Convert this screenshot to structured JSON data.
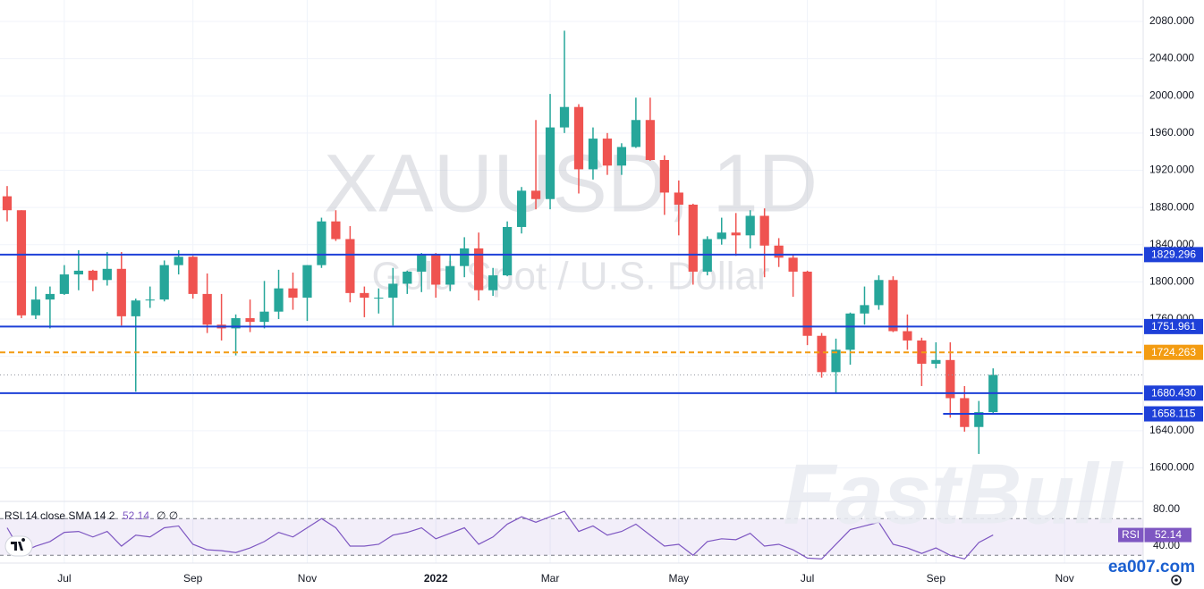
{
  "chart_data": [
    {
      "type": "candlestick",
      "title": "XAUUSD, 1D",
      "subtitle": "Gold Spot / U.S. Dollar",
      "categories": [
        null,
        null,
        null,
        null,
        "Jul",
        null,
        null,
        null,
        null,
        null,
        null,
        null,
        null,
        "Sep",
        null,
        null,
        null,
        null,
        null,
        null,
        null,
        "Nov",
        null,
        null,
        null,
        null,
        null,
        null,
        null,
        null,
        "2022",
        null,
        null,
        null,
        null,
        null,
        null,
        null,
        "Mar",
        null,
        null,
        null,
        null,
        null,
        null,
        null,
        null,
        "May",
        null,
        null,
        null,
        null,
        null,
        null,
        null,
        null,
        "Jul",
        null,
        null,
        null,
        null,
        null,
        null,
        null,
        null,
        "Sep",
        null,
        null,
        null,
        null,
        null,
        null,
        null,
        null,
        "Nov",
        null,
        null,
        null,
        null,
        null
      ],
      "open": [
        1892,
        1877,
        1764,
        1781,
        1787,
        1808,
        1812,
        1802,
        1814,
        1763,
        1780,
        1781,
        1818,
        1827,
        1787,
        1754,
        1750,
        1761,
        1757,
        1768,
        1793,
        1783,
        1818,
        1865,
        1846,
        1788,
        1783,
        1783,
        1798,
        1811,
        1829,
        1797,
        1817,
        1836,
        1791,
        1807,
        1859,
        1898,
        1889,
        1966,
        1988,
        1921,
        1954,
        1925,
        1945,
        1974,
        1931,
        1896,
        1883,
        1811,
        1846,
        1853,
        1850,
        1871,
        1839,
        1826,
        1811,
        1742,
        1703,
        1727,
        1766,
        1775,
        1802,
        1747,
        1737,
        1712,
        1716,
        1675,
        1644,
        1660,
        null,
        null,
        null,
        null,
        null,
        null,
        null,
        null,
        null,
        null
      ],
      "high": [
        1903,
        1877,
        1795,
        1795,
        1818,
        1834,
        1813,
        1832,
        1832,
        1782,
        1795,
        1823,
        1834,
        1828,
        1809,
        1787,
        1765,
        1781,
        1801,
        1813,
        1810,
        1818,
        1869,
        1877,
        1860,
        1795,
        1793,
        1815,
        1812,
        1831,
        1831,
        1829,
        1848,
        1853,
        1815,
        1865,
        1902,
        1974,
        2002,
        2070,
        1991,
        1966,
        1960,
        1949,
        1998,
        1998,
        1936,
        1909,
        1884,
        1849,
        1869,
        1874,
        1877,
        1879,
        1847,
        1830,
        1812,
        1745,
        1739,
        1767,
        1795,
        1807,
        1806,
        1765,
        1740,
        1735,
        1735,
        1688,
        1672,
        1707,
        null,
        null,
        null,
        null,
        null,
        null,
        null,
        null,
        null,
        null
      ],
      "low": [
        1865,
        1761,
        1760,
        1750,
        1786,
        1791,
        1790,
        1796,
        1753,
        1682,
        1772,
        1779,
        1808,
        1782,
        1745,
        1737,
        1721,
        1746,
        1750,
        1760,
        1770,
        1758,
        1815,
        1844,
        1778,
        1762,
        1766,
        1753,
        1787,
        1789,
        1783,
        1790,
        1805,
        1780,
        1785,
        1806,
        1852,
        1878,
        1878,
        1960,
        1895,
        1910,
        1915,
        1915,
        1944,
        1930,
        1872,
        1850,
        1797,
        1807,
        1840,
        1828,
        1836,
        1805,
        1816,
        1784,
        1732,
        1697,
        1681,
        1711,
        1754,
        1770,
        1746,
        1727,
        1688,
        1707,
        1654,
        1639,
        1615,
        1659,
        null,
        null,
        null,
        null,
        null,
        null,
        null,
        null,
        null,
        null
      ],
      "close": [
        1877,
        1764,
        1781,
        1787,
        1808,
        1812,
        1802,
        1814,
        1763,
        1780,
        1781,
        1818,
        1827,
        1787,
        1754,
        1750,
        1761,
        1757,
        1768,
        1793,
        1783,
        1818,
        1865,
        1846,
        1788,
        1783,
        1783,
        1798,
        1811,
        1829,
        1797,
        1817,
        1836,
        1791,
        1807,
        1859,
        1898,
        1889,
        1966,
        1988,
        1921,
        1954,
        1925,
        1945,
        1974,
        1931,
        1896,
        1883,
        1811,
        1846,
        1853,
        1850,
        1871,
        1839,
        1826,
        1811,
        1742,
        1703,
        1727,
        1766,
        1775,
        1802,
        1747,
        1737,
        1712,
        1716,
        1675,
        1644,
        1660,
        1700,
        null,
        null,
        null,
        null,
        null,
        null,
        null,
        null,
        null,
        null
      ],
      "up_color": "#26a69a",
      "down_color": "#ef5350",
      "ylim": [
        1564,
        2103
      ],
      "yticks": [
        {
          "value": 1600,
          "label": "1600.000"
        },
        {
          "value": 1640,
          "label": "1640.000"
        },
        {
          "value": 1680,
          "label": "1680.000"
        },
        {
          "value": 1720,
          "label": "1720.000"
        },
        {
          "value": 1760,
          "label": "1760.000"
        },
        {
          "value": 1800,
          "label": "1800.000"
        },
        {
          "value": 1840,
          "label": "1840.000"
        },
        {
          "value": 1880,
          "label": "1880.000"
        },
        {
          "value": 1920,
          "label": "1920.000"
        },
        {
          "value": 1960,
          "label": "1960.000"
        },
        {
          "value": 2000,
          "label": "2000.000"
        },
        {
          "value": 2040,
          "label": "2040.000"
        },
        {
          "value": 2080,
          "label": "2080.000"
        }
      ],
      "grid": true,
      "levels": [
        {
          "value": 1829.296,
          "label": "1829.296",
          "color": "#1e40d8",
          "style": "solid",
          "extend": "both"
        },
        {
          "value": 1751.961,
          "label": "1751.961",
          "color": "#1e40d8",
          "style": "solid",
          "extend": "both"
        },
        {
          "value": 1724.263,
          "label": "1724.263",
          "color": "#f39c12",
          "style": "dashed",
          "extend": "both"
        },
        {
          "value": 1680.43,
          "label": "1680.430",
          "color": "#1e40d8",
          "style": "solid",
          "extend": "both"
        },
        {
          "value": 1658.115,
          "label": "1658.115",
          "color": "#1e40d8",
          "style": "solid",
          "extend": "right"
        }
      ]
    },
    {
      "type": "line",
      "title": "RSI 14 close SMA 14 2",
      "sma_values": "∅ ∅",
      "series": [
        {
          "name": "RSI",
          "color": "#7e57c2",
          "values": [
            60,
            33,
            40,
            45,
            55,
            56,
            50,
            56,
            40,
            52,
            50,
            60,
            62,
            42,
            36,
            35,
            33,
            38,
            45,
            55,
            50,
            60,
            70,
            60,
            40,
            40,
            42,
            52,
            55,
            60,
            48,
            54,
            60,
            42,
            50,
            64,
            72,
            66,
            72,
            78,
            56,
            62,
            52,
            56,
            64,
            52,
            40,
            42,
            30,
            45,
            48,
            47,
            54,
            40,
            42,
            36,
            27,
            26,
            42,
            58,
            62,
            66,
            42,
            38,
            32,
            38,
            30,
            26,
            44,
            52.14,
            null,
            null,
            null,
            null,
            null,
            null,
            null,
            null,
            null,
            null
          ]
        }
      ],
      "band": [
        30,
        70
      ],
      "ylim": [
        21.5,
        87.8
      ],
      "yticks": [
        {
          "value": 40,
          "label": "40.00"
        },
        {
          "value": 80,
          "label": "80.00"
        }
      ]
    }
  ],
  "watermark": "FastBull",
  "site": "ea007.com"
}
